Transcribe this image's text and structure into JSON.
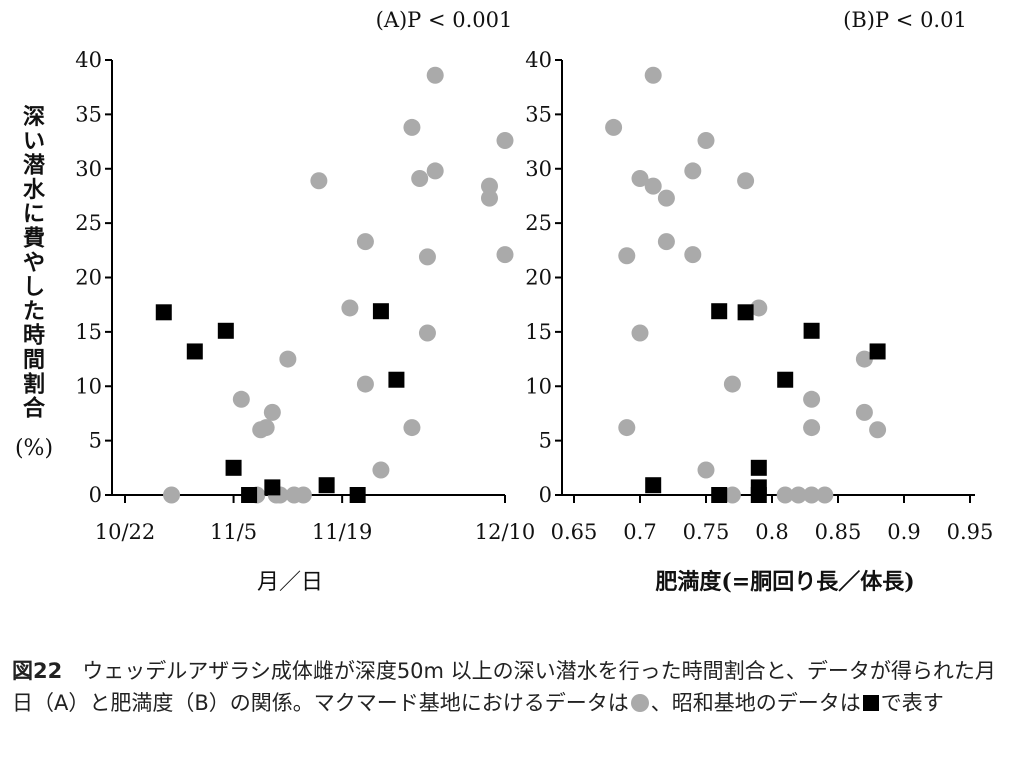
{
  "colors": {
    "mawson": "#aaaaaa",
    "showa": "#000000",
    "axis": "#000000"
  },
  "y_label_chars": [
    "深",
    "い",
    "潜",
    "水",
    "に",
    "費",
    "や",
    "し",
    "た",
    "時",
    "間",
    "割",
    "合"
  ],
  "y_label_unit": "(%)",
  "chart_data": [
    {
      "type": "scatter",
      "title": "(A)P < 0.001",
      "xlabel": "月／日",
      "ylabel": "深い潜水に費やした時間割合(%)",
      "x_tick_labels": [
        "10/22",
        "11/5",
        "11/19",
        "12/10"
      ],
      "x_ticks_days": [
        0,
        14,
        28,
        49
      ],
      "xlim_days": [
        0,
        49
      ],
      "ylim": [
        0,
        40
      ],
      "y_ticks": [
        0,
        5,
        10,
        15,
        20,
        25,
        30,
        35,
        40
      ],
      "series": [
        {
          "marker": "circle",
          "points": [
            [
              6,
              0
            ],
            [
              15,
              8.8
            ],
            [
              17,
              0
            ],
            [
              17.5,
              6
            ],
            [
              18.2,
              6.2
            ],
            [
              19,
              7.6
            ],
            [
              19.5,
              0
            ],
            [
              20,
              0
            ],
            [
              21,
              12.5
            ],
            [
              21.8,
              0
            ],
            [
              23,
              0
            ],
            [
              25,
              28.9
            ],
            [
              29,
              17.2
            ],
            [
              31,
              23.3
            ],
            [
              31,
              10.2
            ],
            [
              33,
              2.3
            ],
            [
              37,
              33.8
            ],
            [
              37,
              6.2
            ],
            [
              38,
              29.1
            ],
            [
              39,
              14.9
            ],
            [
              39,
              21.9
            ],
            [
              40,
              29.8
            ],
            [
              40,
              38.6
            ],
            [
              47,
              28.4
            ],
            [
              47,
              27.3
            ],
            [
              49,
              32.6
            ],
            [
              49,
              22.1
            ]
          ]
        },
        {
          "marker": "square",
          "points": [
            [
              5,
              16.8
            ],
            [
              9,
              13.2
            ],
            [
              13,
              15.1
            ],
            [
              14,
              2.5
            ],
            [
              16,
              0
            ],
            [
              19,
              0.7
            ],
            [
              26,
              0.9
            ],
            [
              30,
              0
            ],
            [
              33,
              16.9
            ],
            [
              35,
              10.6
            ]
          ]
        }
      ]
    },
    {
      "type": "scatter",
      "title": "(B)P < 0.01",
      "xlabel": "肥満度(=胴回り長／体長)",
      "ylabel": "",
      "x_tick_labels": [
        "0.65",
        "0.7",
        "0.75",
        "0.8",
        "0.85",
        "0.9",
        "0.95"
      ],
      "x_ticks": [
        0.65,
        0.7,
        0.75,
        0.8,
        0.85,
        0.9,
        0.95
      ],
      "xlim": [
        0.65,
        0.95
      ],
      "ylim": [
        0,
        40
      ],
      "y_ticks": [
        0,
        5,
        10,
        15,
        20,
        25,
        30,
        35,
        40
      ],
      "series": [
        {
          "marker": "circle",
          "points": [
            [
              0.68,
              33.8
            ],
            [
              0.69,
              22
            ],
            [
              0.69,
              6.2
            ],
            [
              0.7,
              29.1
            ],
            [
              0.7,
              14.9
            ],
            [
              0.71,
              38.6
            ],
            [
              0.71,
              28.4
            ],
            [
              0.72,
              27.3
            ],
            [
              0.72,
              23.3
            ],
            [
              0.74,
              29.8
            ],
            [
              0.74,
              22.1
            ],
            [
              0.75,
              32.6
            ],
            [
              0.75,
              2.3
            ],
            [
              0.77,
              10.2
            ],
            [
              0.77,
              0
            ],
            [
              0.78,
              28.9
            ],
            [
              0.79,
              17.2
            ],
            [
              0.81,
              0
            ],
            [
              0.82,
              0
            ],
            [
              0.83,
              0
            ],
            [
              0.84,
              0
            ],
            [
              0.83,
              8.8
            ],
            [
              0.83,
              6.2
            ],
            [
              0.87,
              12.5
            ],
            [
              0.87,
              7.6
            ],
            [
              0.88,
              6
            ]
          ]
        },
        {
          "marker": "square",
          "points": [
            [
              0.71,
              0.9
            ],
            [
              0.76,
              16.9
            ],
            [
              0.76,
              0
            ],
            [
              0.78,
              16.8
            ],
            [
              0.79,
              2.5
            ],
            [
              0.79,
              0.7
            ],
            [
              0.79,
              0
            ],
            [
              0.81,
              10.6
            ],
            [
              0.83,
              15.1
            ],
            [
              0.88,
              13.2
            ]
          ]
        }
      ]
    }
  ],
  "caption": {
    "label": "図22",
    "text1": "ウェッデルアザラシ成体雌が深度50m 以上の深い潜水を行った時間割合と、データが得られた月日（A）と肥満度（B）の関係。マクマード基地におけるデータは",
    "text2": "、昭和基地のデータは",
    "text3": "で表す"
  }
}
